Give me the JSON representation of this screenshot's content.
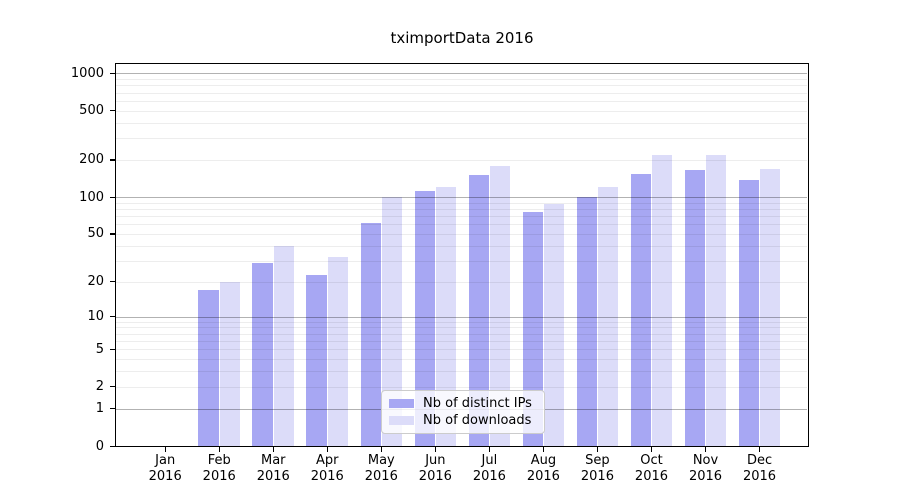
{
  "chart_data": {
    "type": "bar",
    "title": "tximportData 2016",
    "categories": [
      "Jan 2016",
      "Feb 2016",
      "Mar 2016",
      "Apr 2016",
      "May 2016",
      "Jun 2016",
      "Jul 2016",
      "Aug 2016",
      "Sep 2016",
      "Oct 2016",
      "Nov 2016",
      "Dec 2016"
    ],
    "series": [
      {
        "name": "Nb of distinct IPs",
        "color": "#a7a7f3",
        "values": [
          0,
          17,
          29,
          23,
          61,
          113,
          150,
          75,
          100,
          155,
          167,
          138
        ]
      },
      {
        "name": "Nb of downloads",
        "color": "#dcdcf9",
        "values": [
          0,
          20,
          40,
          32,
          100,
          120,
          177,
          88,
          120,
          218,
          221,
          168
        ]
      }
    ],
    "y_scale": "log1p",
    "ylim": [
      0,
      1000
    ],
    "y_ticks": [
      0,
      1,
      2,
      5,
      10,
      20,
      50,
      100,
      200,
      500,
      1000
    ],
    "major_grid_values": [
      1,
      10,
      100,
      1000
    ],
    "grid": true,
    "legend_position": "inside-bottom-center",
    "xlabel": "",
    "ylabel": ""
  }
}
